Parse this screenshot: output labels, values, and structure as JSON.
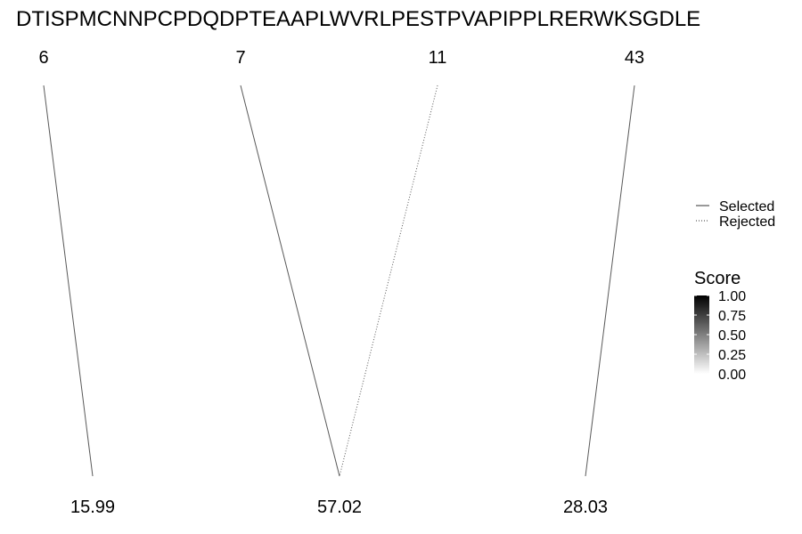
{
  "chart_data": {
    "type": "line",
    "sequence": "DTISPMCNNPCPDQDPTEAAPLWVRLPESTPVAPIPPLRERWKSGDLE",
    "positions": [
      6,
      7,
      11,
      43
    ],
    "masses": [
      "15.99",
      "57.02",
      "28.03"
    ],
    "links": [
      {
        "position": 6,
        "mass": "15.99",
        "status": "Selected",
        "score": 0.65
      },
      {
        "position": 7,
        "mass": "57.02",
        "status": "Selected",
        "score": 0.65
      },
      {
        "position": 11,
        "mass": "57.02",
        "status": "Rejected",
        "score": 0.65
      },
      {
        "position": 43,
        "mass": "28.03",
        "status": "Selected",
        "score": 0.65
      }
    ],
    "linetype_legend": {
      "entries": [
        {
          "label": "Selected",
          "style": "solid"
        },
        {
          "label": "Rejected",
          "style": "dotted"
        }
      ]
    },
    "score_legend": {
      "title": "Score",
      "ticks": [
        "1.00",
        "0.75",
        "0.50",
        "0.25",
        "0.00"
      ],
      "range": [
        0,
        1
      ],
      "color_low": "#ffffff",
      "color_high": "#000000"
    },
    "legend_position": "right"
  }
}
